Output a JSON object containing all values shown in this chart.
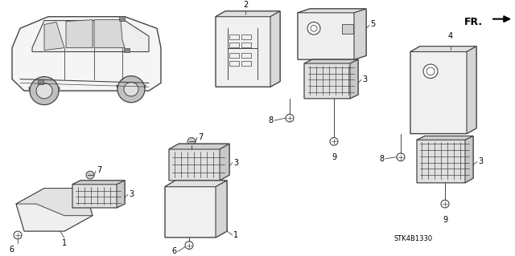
{
  "bg_color": "#ffffff",
  "part_code": "STK4B1330",
  "line_color": "#444444",
  "fig_width": 6.4,
  "fig_height": 3.19,
  "dpi": 100,
  "label_fontsize": 7.0,
  "label_fontsize_sm": 6.0
}
